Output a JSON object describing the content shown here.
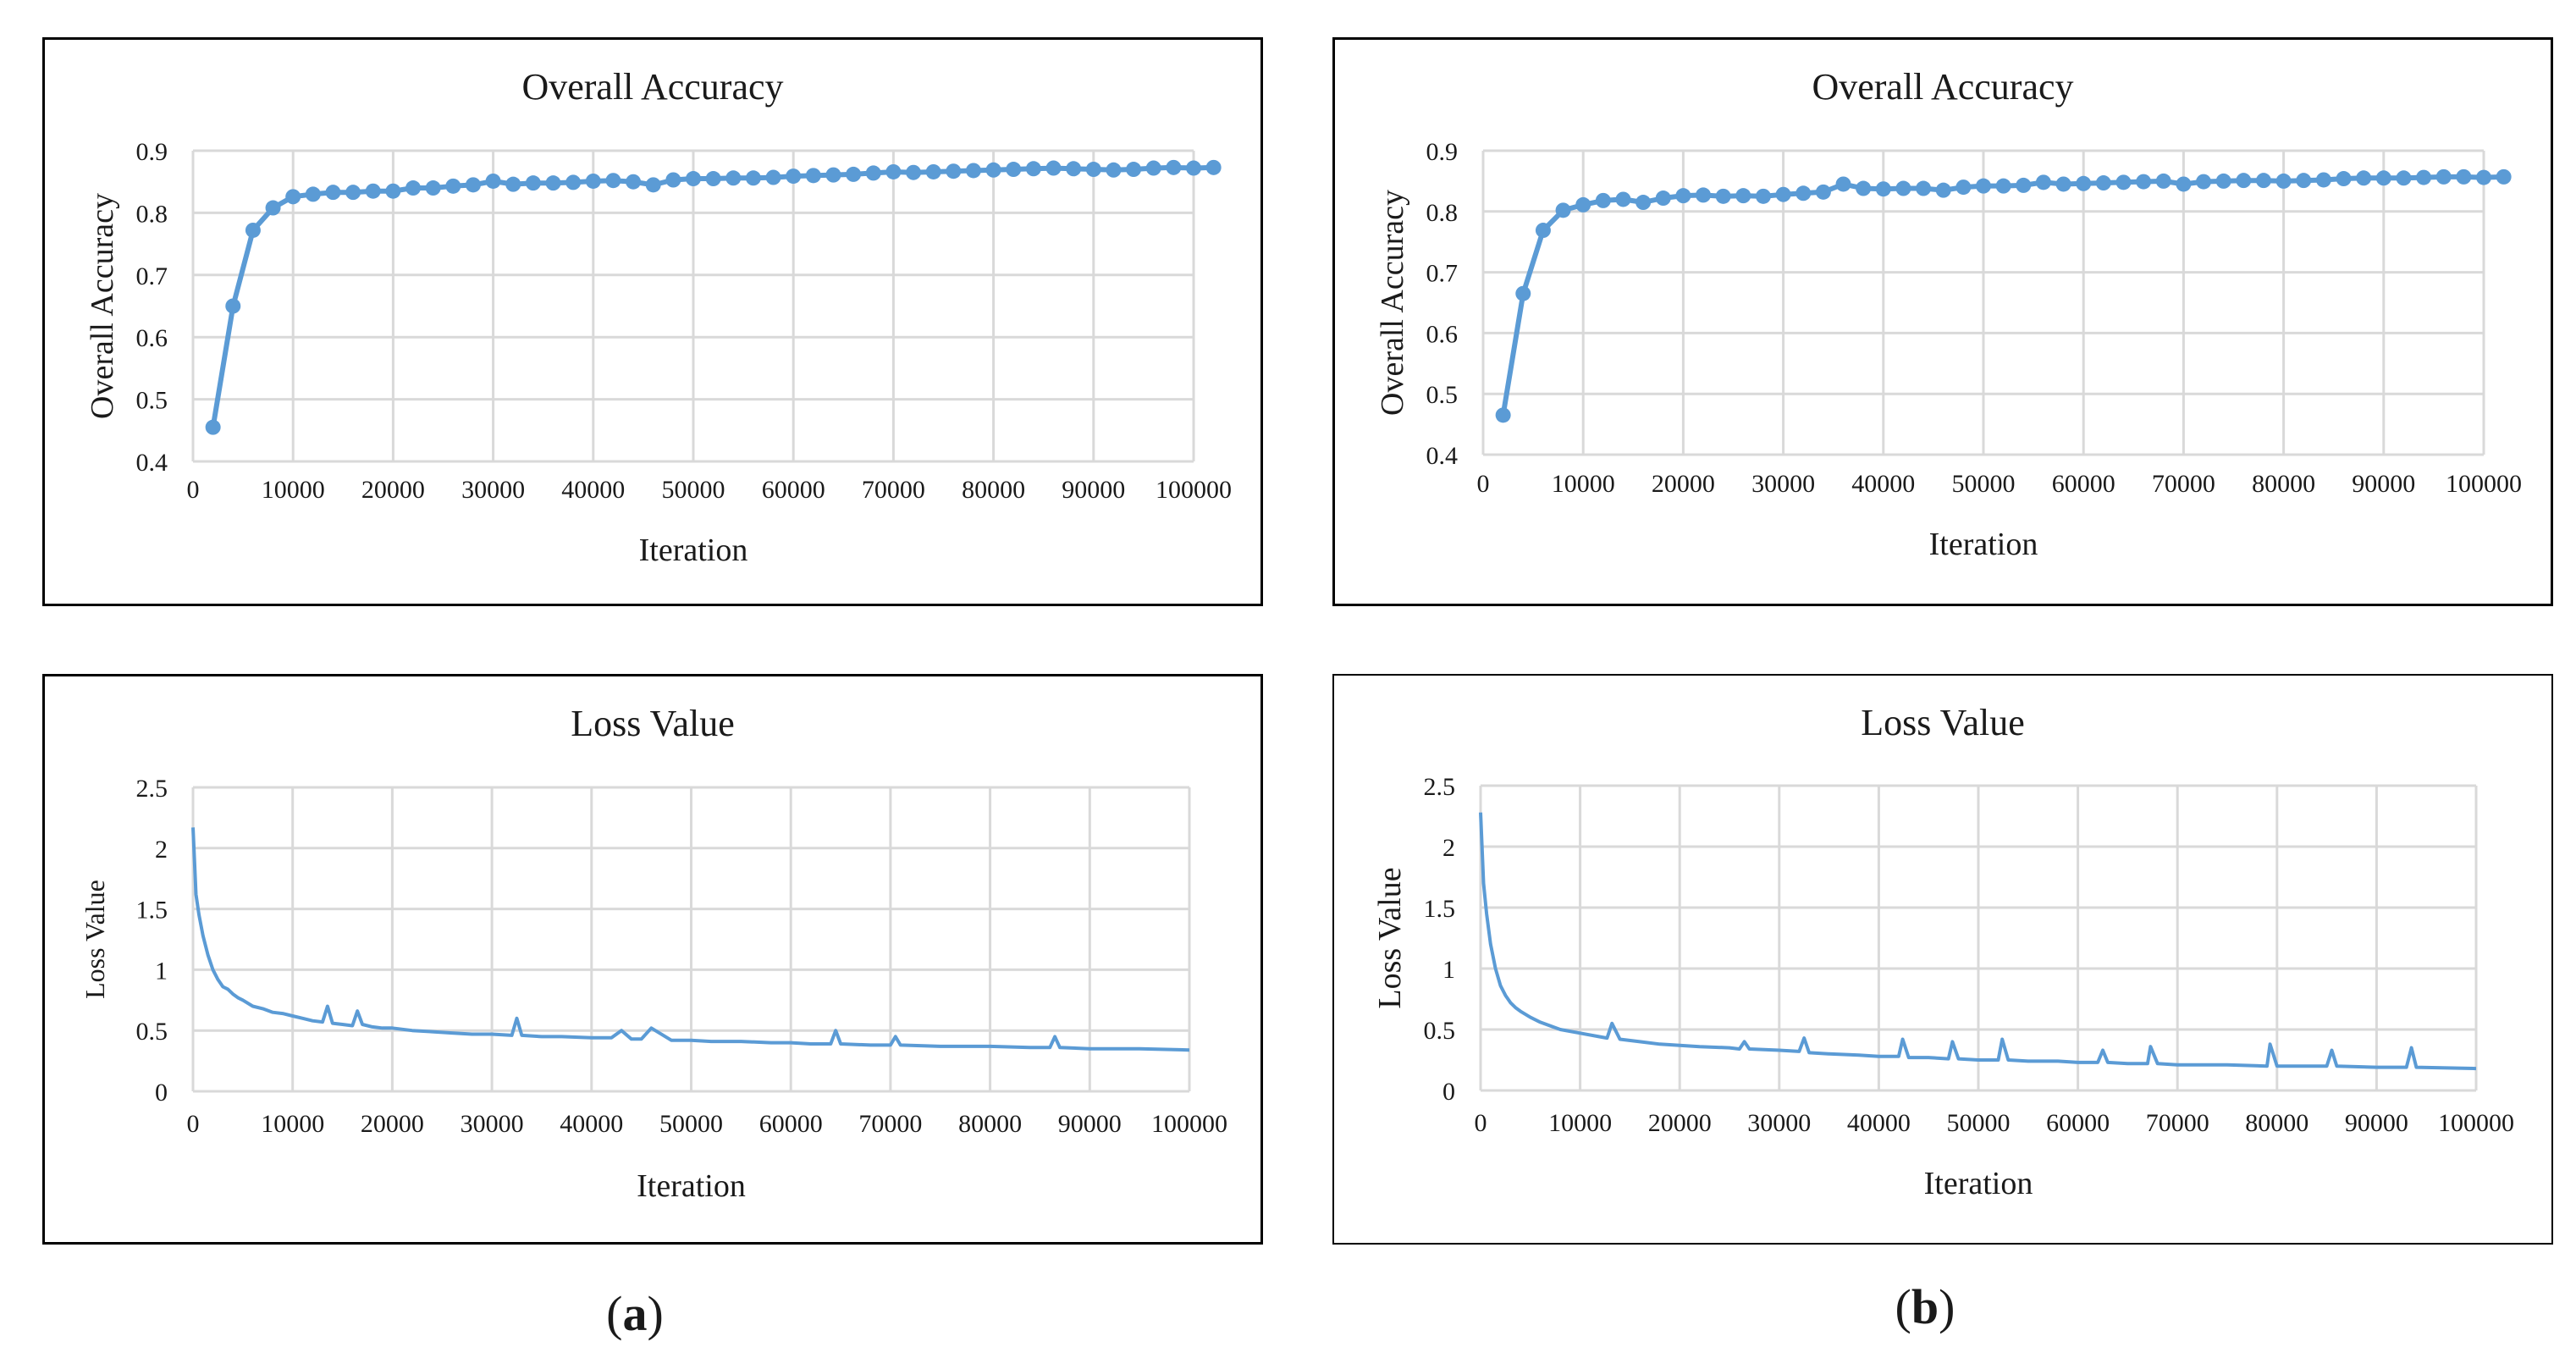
{
  "figure": {
    "panel_a_label": "a",
    "panel_b_label": "b",
    "paren_open": "(",
    "paren_close": ")",
    "line_color": "#5b9bd5",
    "grid_color": "#d9d9d9"
  },
  "chart_data": [
    {
      "id": "acc_a",
      "type": "line",
      "title": "Overall Accuracy",
      "xlabel": "Iteration",
      "ylabel": "Overall Accuracy",
      "xlim": [
        0,
        100000
      ],
      "ylim": [
        0.4,
        0.9
      ],
      "x_ticks": [
        0,
        10000,
        20000,
        30000,
        40000,
        50000,
        60000,
        70000,
        80000,
        90000,
        100000
      ],
      "x_tick_labels": [
        "0",
        "10000",
        "20000",
        "30000",
        "40000",
        "50000",
        "60000",
        "70000",
        "80000",
        "90000",
        "100000"
      ],
      "y_ticks": [
        0.4,
        0.5,
        0.6,
        0.7,
        0.8,
        0.9
      ],
      "y_tick_labels": [
        "0.4",
        "0.5",
        "0.6",
        "0.7",
        "0.8",
        "0.9"
      ],
      "markers": true,
      "x_start": 2000,
      "x_step": 2000,
      "values": [
        0.455,
        0.65,
        0.772,
        0.808,
        0.826,
        0.83,
        0.833,
        0.833,
        0.835,
        0.835,
        0.84,
        0.84,
        0.843,
        0.845,
        0.851,
        0.846,
        0.848,
        0.848,
        0.849,
        0.851,
        0.852,
        0.85,
        0.845,
        0.853,
        0.855,
        0.855,
        0.856,
        0.856,
        0.857,
        0.859,
        0.86,
        0.861,
        0.862,
        0.864,
        0.866,
        0.865,
        0.866,
        0.867,
        0.868,
        0.869,
        0.87,
        0.871,
        0.872,
        0.871,
        0.87,
        0.869,
        0.87,
        0.872,
        0.873,
        0.872,
        0.873
      ]
    },
    {
      "id": "acc_b",
      "type": "line",
      "title": "Overall Accuracy",
      "xlabel": "Iteration",
      "ylabel": "Overall Accuracy",
      "xlim": [
        0,
        100000
      ],
      "ylim": [
        0.4,
        0.9
      ],
      "x_ticks": [
        0,
        10000,
        20000,
        30000,
        40000,
        50000,
        60000,
        70000,
        80000,
        90000,
        100000
      ],
      "x_tick_labels": [
        "0",
        "10000",
        "20000",
        "30000",
        "40000",
        "50000",
        "60000",
        "70000",
        "80000",
        "90000",
        "100000"
      ],
      "y_ticks": [
        0.4,
        0.5,
        0.6,
        0.7,
        0.8,
        0.9
      ],
      "y_tick_labels": [
        "0.4",
        "0.5",
        "0.6",
        "0.7",
        "0.8",
        "0.9"
      ],
      "markers": true,
      "x_start": 2000,
      "x_step": 2000,
      "values": [
        0.465,
        0.665,
        0.769,
        0.802,
        0.811,
        0.818,
        0.82,
        0.815,
        0.822,
        0.826,
        0.827,
        0.825,
        0.826,
        0.825,
        0.828,
        0.83,
        0.832,
        0.845,
        0.838,
        0.837,
        0.838,
        0.838,
        0.835,
        0.84,
        0.842,
        0.842,
        0.843,
        0.848,
        0.845,
        0.846,
        0.847,
        0.848,
        0.849,
        0.85,
        0.845,
        0.849,
        0.85,
        0.851,
        0.851,
        0.85,
        0.851,
        0.852,
        0.854,
        0.855,
        0.855,
        0.855,
        0.856,
        0.857,
        0.857,
        0.856,
        0.857
      ]
    },
    {
      "id": "loss_a",
      "type": "line",
      "title": "Loss Value",
      "xlabel": "Iteration",
      "ylabel": "Loss Value",
      "xlim": [
        0,
        100000
      ],
      "ylim": [
        0,
        2.5
      ],
      "x_ticks": [
        0,
        10000,
        20000,
        30000,
        40000,
        50000,
        60000,
        70000,
        80000,
        90000,
        100000
      ],
      "x_tick_labels": [
        "0",
        "10000",
        "20000",
        "30000",
        "40000",
        "50000",
        "60000",
        "70000",
        "80000",
        "90000",
        "100000"
      ],
      "y_ticks": [
        0,
        0.5,
        1,
        1.5,
        2,
        2.5
      ],
      "y_tick_labels": [
        "0",
        "0.5",
        "1",
        "1.5",
        "2",
        "2.5"
      ],
      "markers": false,
      "x": [
        0,
        300,
        600,
        1000,
        1500,
        2000,
        2500,
        3000,
        3500,
        4000,
        4500,
        5000,
        6000,
        7000,
        8000,
        9000,
        10000,
        11000,
        12000,
        13000,
        13500,
        14000,
        15000,
        16000,
        16500,
        17000,
        18000,
        19000,
        20000,
        22000,
        24000,
        26000,
        28000,
        30000,
        32000,
        32500,
        33000,
        35000,
        37000,
        40000,
        42000,
        43000,
        44000,
        45000,
        46000,
        48000,
        50000,
        52000,
        55000,
        58000,
        60000,
        62000,
        64000,
        64500,
        65000,
        68000,
        70000,
        70500,
        71000,
        75000,
        80000,
        84000,
        86000,
        86500,
        87000,
        90000,
        92000,
        95000,
        100000
      ],
      "y": [
        2.17,
        1.62,
        1.45,
        1.28,
        1.12,
        1.0,
        0.92,
        0.86,
        0.84,
        0.8,
        0.77,
        0.75,
        0.7,
        0.68,
        0.65,
        0.64,
        0.62,
        0.6,
        0.58,
        0.57,
        0.7,
        0.56,
        0.55,
        0.54,
        0.66,
        0.55,
        0.53,
        0.52,
        0.52,
        0.5,
        0.49,
        0.48,
        0.47,
        0.47,
        0.46,
        0.6,
        0.46,
        0.45,
        0.45,
        0.44,
        0.44,
        0.5,
        0.43,
        0.43,
        0.52,
        0.42,
        0.42,
        0.41,
        0.41,
        0.4,
        0.4,
        0.39,
        0.39,
        0.5,
        0.39,
        0.38,
        0.38,
        0.45,
        0.38,
        0.37,
        0.37,
        0.36,
        0.36,
        0.45,
        0.36,
        0.35,
        0.35,
        0.35,
        0.34
      ]
    },
    {
      "id": "loss_b",
      "type": "line",
      "title": "Loss Value",
      "xlabel": "Iteration",
      "ylabel": "Loss Value",
      "xlim": [
        0,
        100000
      ],
      "ylim": [
        0,
        2.5
      ],
      "x_ticks": [
        0,
        10000,
        20000,
        30000,
        40000,
        50000,
        60000,
        70000,
        80000,
        90000,
        100000
      ],
      "x_tick_labels": [
        "0",
        "10000",
        "20000",
        "30000",
        "40000",
        "50000",
        "60000",
        "70000",
        "80000",
        "90000",
        "100000"
      ],
      "y_ticks": [
        0,
        0.5,
        1,
        1.5,
        2,
        2.5
      ],
      "y_tick_labels": [
        "0",
        "0.5",
        "1",
        "1.5",
        "2",
        "2.5"
      ],
      "markers": false,
      "x": [
        0,
        300,
        600,
        1000,
        1500,
        2000,
        2500,
        3000,
        3500,
        4000,
        5000,
        6000,
        8000,
        10000,
        12000,
        12700,
        13200,
        14000,
        16000,
        18000,
        20000,
        22000,
        25000,
        26000,
        26500,
        27000,
        30000,
        32000,
        32500,
        33000,
        35000,
        38000,
        40000,
        42000,
        42400,
        43000,
        45000,
        47000,
        47400,
        48000,
        50000,
        52000,
        52400,
        53000,
        55000,
        58000,
        60000,
        62000,
        62500,
        63000,
        65000,
        67000,
        67300,
        68000,
        70000,
        75000,
        79000,
        79300,
        80000,
        85000,
        85500,
        86000,
        90000,
        93000,
        93500,
        94000,
        100000
      ],
      "y": [
        2.28,
        1.7,
        1.45,
        1.2,
        1.0,
        0.86,
        0.78,
        0.72,
        0.68,
        0.65,
        0.6,
        0.56,
        0.5,
        0.47,
        0.44,
        0.43,
        0.55,
        0.42,
        0.4,
        0.38,
        0.37,
        0.36,
        0.35,
        0.34,
        0.4,
        0.34,
        0.33,
        0.32,
        0.43,
        0.31,
        0.3,
        0.29,
        0.28,
        0.28,
        0.42,
        0.27,
        0.27,
        0.26,
        0.4,
        0.26,
        0.25,
        0.25,
        0.42,
        0.25,
        0.24,
        0.24,
        0.23,
        0.23,
        0.33,
        0.23,
        0.22,
        0.22,
        0.36,
        0.22,
        0.21,
        0.21,
        0.2,
        0.38,
        0.2,
        0.2,
        0.33,
        0.2,
        0.19,
        0.19,
        0.35,
        0.19,
        0.18
      ]
    }
  ]
}
